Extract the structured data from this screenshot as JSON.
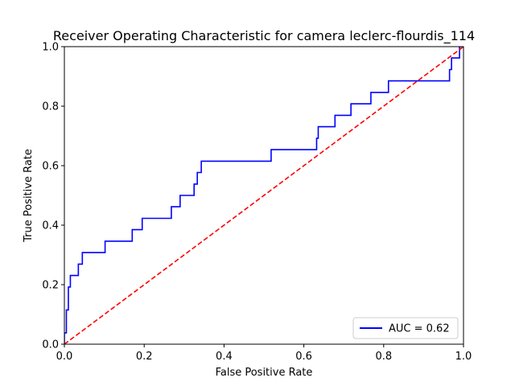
{
  "chart_data": {
    "type": "line",
    "title": "Receiver Operating Characteristic for camera leclerc-flourdis_114",
    "xlabel": "False Positive Rate",
    "ylabel": "True Positive Rate",
    "xlim": [
      0,
      1
    ],
    "ylim": [
      0,
      1
    ],
    "x_ticks": [
      "0.0",
      "0.2",
      "0.4",
      "0.6",
      "0.8",
      "1.0"
    ],
    "y_ticks": [
      "0.0",
      "0.2",
      "0.4",
      "0.6",
      "0.8",
      "1.0"
    ],
    "grid": false,
    "legend_position": "lower right",
    "series": [
      {
        "name": "AUC = 0.62",
        "color": "#0000ff",
        "style": "solid",
        "x": [
          0.0,
          0.0,
          0.005,
          0.005,
          0.01,
          0.01,
          0.015,
          0.015,
          0.02,
          0.02,
          0.035,
          0.035,
          0.045,
          0.045,
          0.102,
          0.102,
          0.17,
          0.17,
          0.195,
          0.195,
          0.268,
          0.268,
          0.29,
          0.29,
          0.325,
          0.325,
          0.333,
          0.333,
          0.343,
          0.343,
          0.518,
          0.518,
          0.632,
          0.632,
          0.636,
          0.636,
          0.678,
          0.678,
          0.718,
          0.718,
          0.768,
          0.768,
          0.812,
          0.812,
          0.965,
          0.965,
          0.97,
          0.97,
          0.99,
          0.99,
          1.0
        ],
        "y": [
          0.0,
          0.038,
          0.038,
          0.115,
          0.115,
          0.192,
          0.192,
          0.231,
          0.231,
          0.231,
          0.231,
          0.269,
          0.269,
          0.308,
          0.308,
          0.346,
          0.346,
          0.385,
          0.385,
          0.423,
          0.423,
          0.462,
          0.462,
          0.5,
          0.5,
          0.538,
          0.538,
          0.577,
          0.577,
          0.615,
          0.615,
          0.654,
          0.654,
          0.692,
          0.692,
          0.731,
          0.731,
          0.769,
          0.769,
          0.808,
          0.808,
          0.846,
          0.846,
          0.885,
          0.885,
          0.923,
          0.923,
          0.962,
          0.962,
          1.0,
          1.0
        ]
      },
      {
        "color": "#ff0000",
        "style": "dashed",
        "x": [
          0,
          1
        ],
        "y": [
          0,
          1
        ]
      }
    ]
  }
}
